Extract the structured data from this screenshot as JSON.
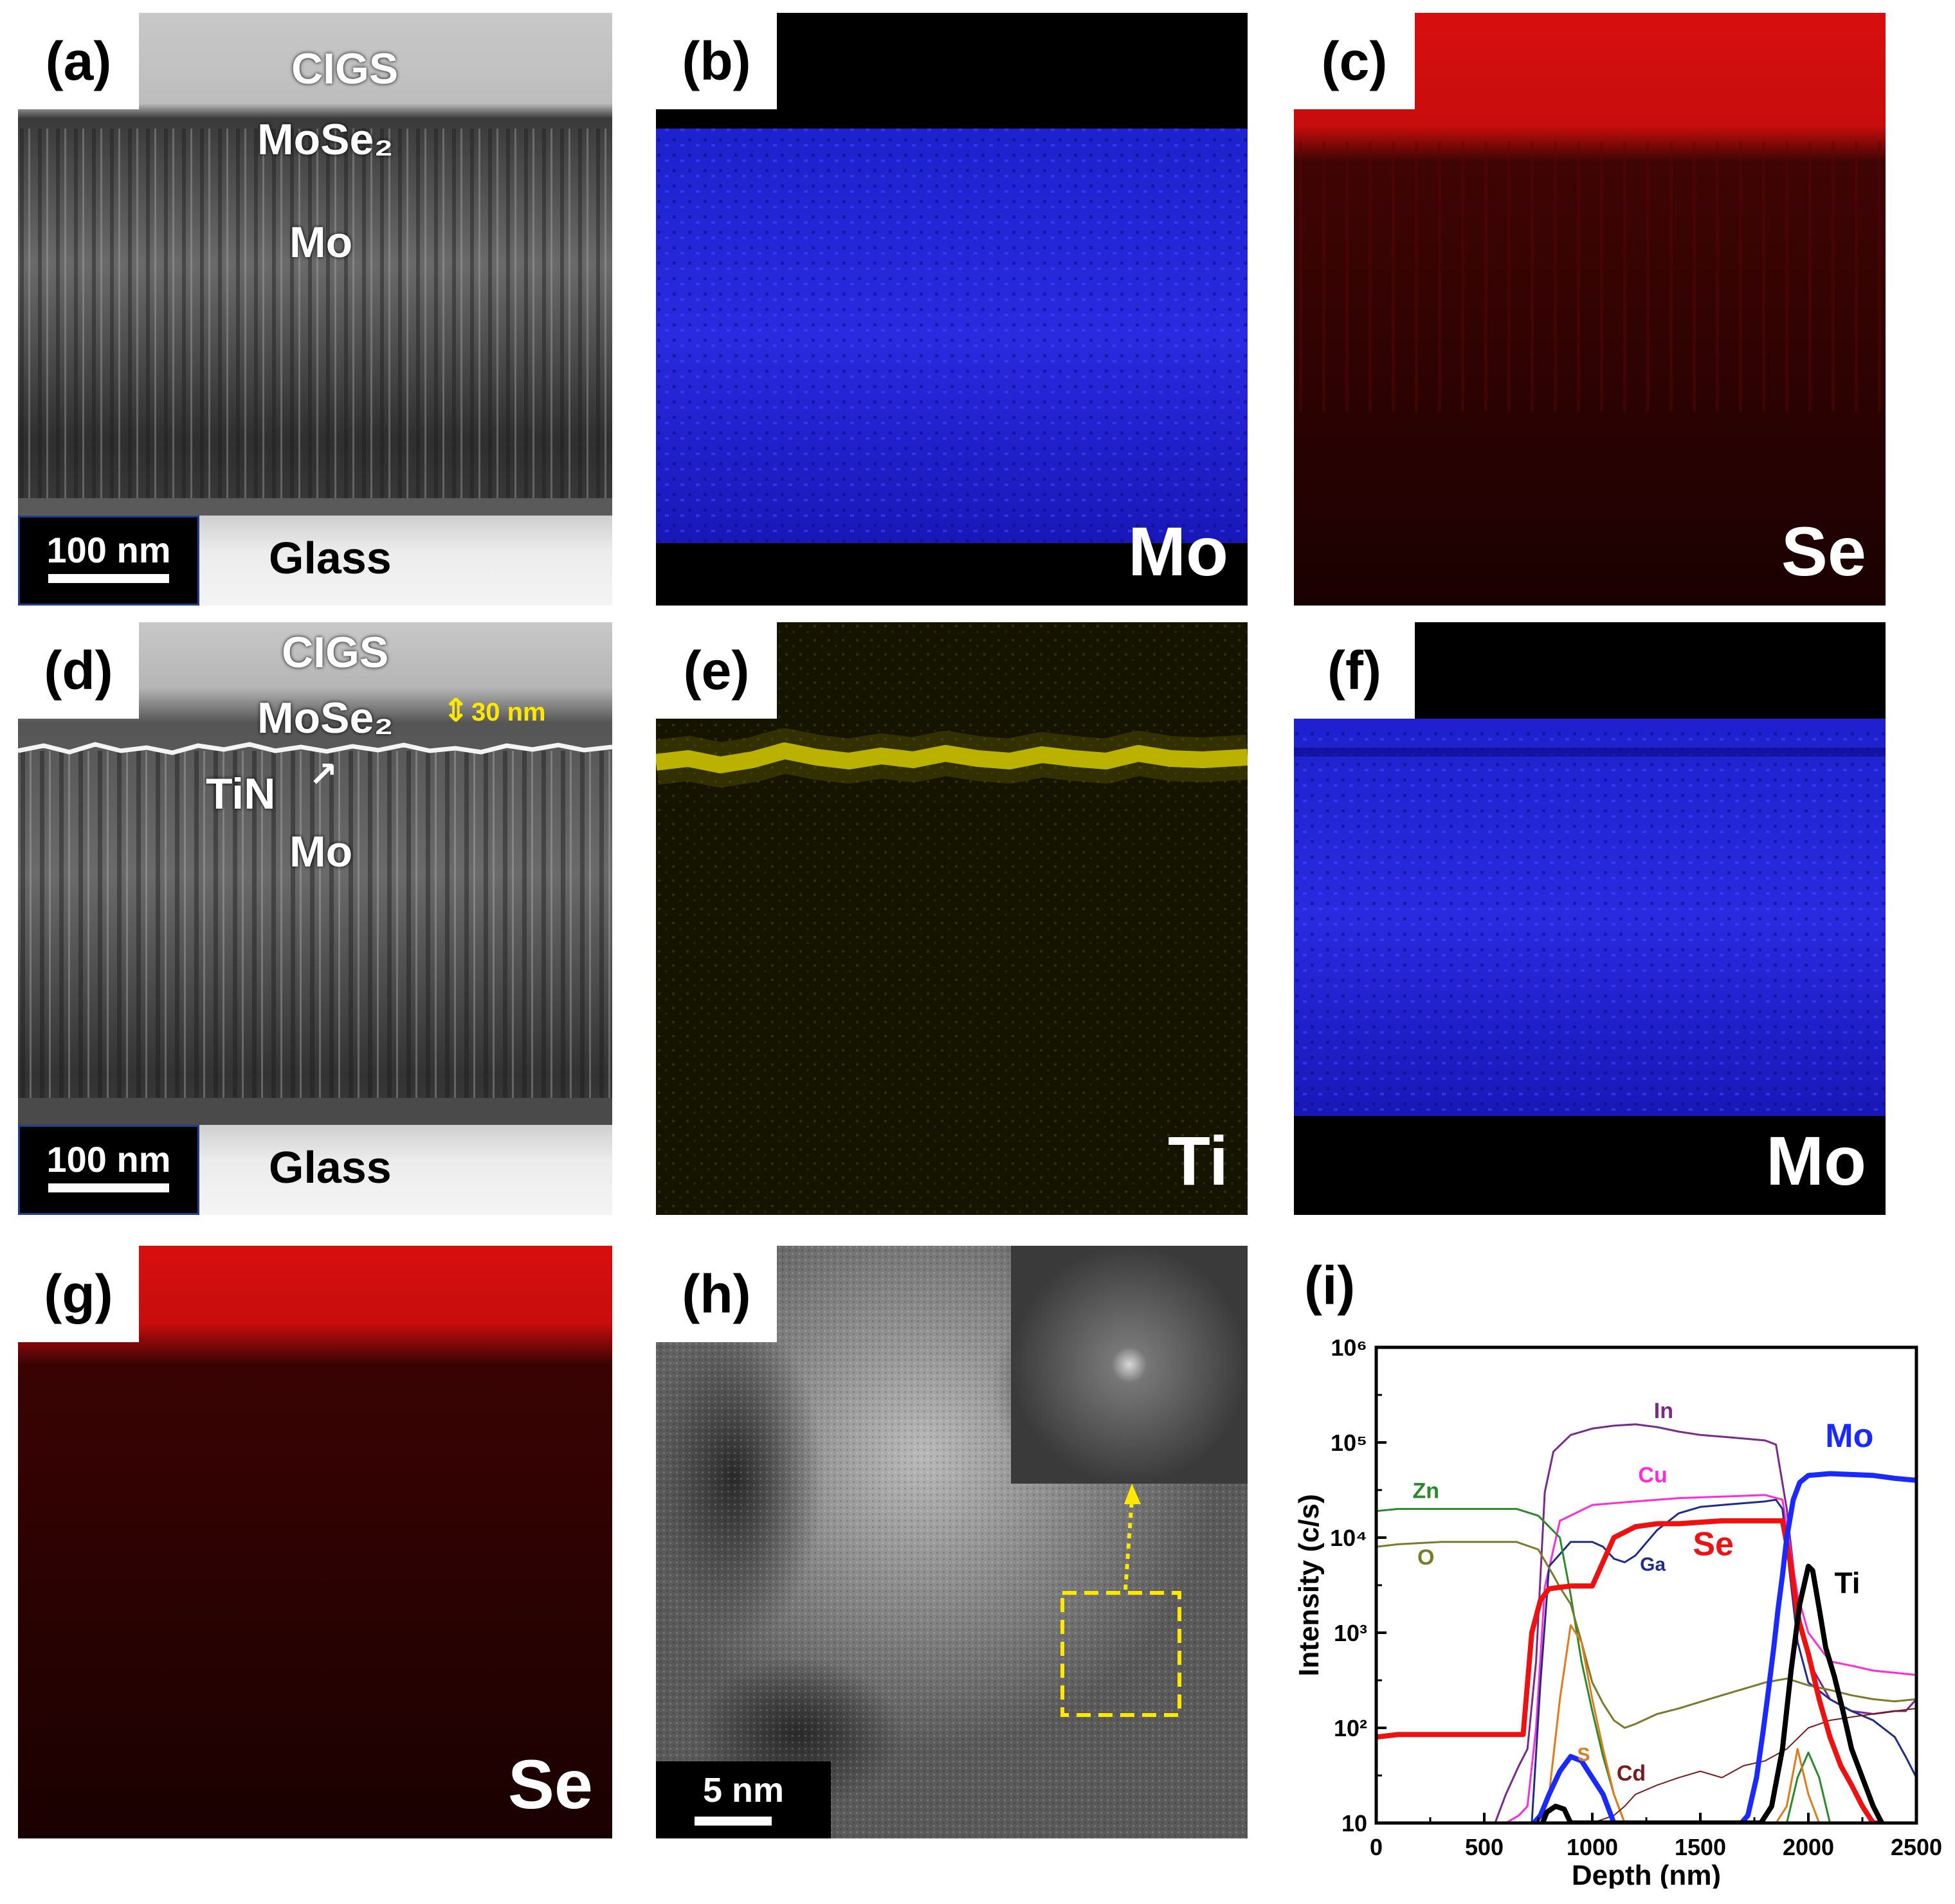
{
  "figure": {
    "panels": {
      "a": {
        "label": "(a)",
        "layers": {
          "top": "CIGS",
          "interlayer": "MoSe₂",
          "metal": "Mo"
        },
        "scale": "100 nm",
        "substrate": "Glass"
      },
      "b": {
        "label": "(b)",
        "element": "Mo",
        "map_color": "#1a1aff"
      },
      "c": {
        "label": "(c)",
        "element": "Se",
        "map_color": "#e01010"
      },
      "d": {
        "label": "(d)",
        "layers": {
          "top": "CIGS",
          "interlayer": "MoSe₂",
          "thickness": "30 nm",
          "barrier": "TiN",
          "metal": "Mo"
        },
        "scale": "100 nm",
        "substrate": "Glass"
      },
      "e": {
        "label": "(e)",
        "element": "Ti",
        "map_color": "#d8d000"
      },
      "f": {
        "label": "(f)",
        "element": "Mo",
        "map_color": "#1a1aff"
      },
      "g": {
        "label": "(g)",
        "element": "Se",
        "map_color": "#e01010"
      },
      "h": {
        "label": "(h)",
        "scale": "5 nm"
      },
      "i": {
        "label": "(i)"
      }
    }
  },
  "chart_data": {
    "type": "line",
    "xlabel": "Depth (nm)",
    "ylabel": "Intensity (c/s)",
    "xlim": [
      0,
      2500
    ],
    "ylim": [
      10,
      1000000
    ],
    "yscale": "log",
    "xticks": [
      "0",
      "500",
      "1000",
      "1500",
      "2000",
      "2500"
    ],
    "yticks": [
      "10",
      "10²",
      "10³",
      "10⁴",
      "10⁵",
      "10⁶"
    ],
    "series": [
      {
        "name": "In",
        "color": "#7a2a8a",
        "width": 3,
        "x": [
          550,
          600,
          660,
          700,
          740,
          780,
          820,
          900,
          1000,
          1100,
          1200,
          1300,
          1400,
          1500,
          1600,
          1700,
          1800,
          1850,
          1900,
          1950,
          2000,
          2100,
          2200,
          2300,
          2400,
          2450,
          2500
        ],
        "y": [
          10,
          20,
          40,
          60,
          500,
          30000,
          80000,
          120000,
          140000,
          150000,
          155000,
          145000,
          130000,
          120000,
          115000,
          110000,
          105000,
          95000,
          20000,
          2000,
          500,
          200,
          150,
          140,
          150,
          150,
          200
        ]
      },
      {
        "name": "Cu",
        "color": "#ff2ad9",
        "width": 3,
        "x": [
          600,
          660,
          700,
          740,
          780,
          850,
          1000,
          1200,
          1400,
          1600,
          1800,
          1880,
          1950,
          2000,
          2100,
          2200,
          2300,
          2400,
          2500
        ],
        "y": [
          10,
          12,
          15,
          100,
          3000,
          15000,
          22000,
          24000,
          26000,
          27000,
          28000,
          25000,
          2500,
          1000,
          500,
          450,
          400,
          380,
          360
        ]
      },
      {
        "name": "Ga",
        "color": "#1f2c8c",
        "width": 3,
        "x": [
          720,
          760,
          800,
          900,
          1000,
          1050,
          1100,
          1150,
          1200,
          1300,
          1400,
          1500,
          1600,
          1700,
          1800,
          1850,
          1880,
          1950,
          2000,
          2100,
          2200,
          2300,
          2400,
          2450,
          2500
        ],
        "y": [
          10,
          300,
          5000,
          9000,
          9000,
          8000,
          6000,
          5500,
          6500,
          12000,
          18000,
          21000,
          22000,
          23000,
          24000,
          25000,
          20000,
          800,
          300,
          200,
          150,
          120,
          80,
          50,
          30
        ]
      },
      {
        "name": "Zn",
        "color": "#2a8a2a",
        "width": 3,
        "x": [
          0,
          100,
          300,
          500,
          650,
          750,
          850,
          900,
          950,
          1000,
          1050,
          1100,
          1150,
          1200,
          1800,
          1900,
          1950,
          2000,
          2050,
          2100,
          2500
        ],
        "y": [
          19000,
          20000,
          20000,
          20000,
          20000,
          17000,
          10000,
          2500,
          500,
          150,
          50,
          20,
          10,
          10,
          10,
          10,
          30,
          55,
          30,
          10,
          10
        ]
      },
      {
        "name": "O",
        "color": "#7a7a2a",
        "width": 3,
        "x": [
          0,
          100,
          300,
          500,
          650,
          750,
          820,
          850,
          900,
          950,
          1000,
          1050,
          1100,
          1150,
          1200,
          1300,
          1400,
          1600,
          1800,
          1900,
          2000,
          2100,
          2200,
          2300,
          2400,
          2500
        ],
        "y": [
          8000,
          8500,
          9000,
          9000,
          9000,
          7500,
          4000,
          3000,
          2000,
          800,
          300,
          180,
          120,
          100,
          110,
          140,
          160,
          220,
          300,
          330,
          280,
          250,
          220,
          200,
          190,
          200
        ]
      },
      {
        "name": "S",
        "color": "#e07a1a",
        "width": 3,
        "x": [
          750,
          800,
          850,
          900,
          950,
          1000,
          1050,
          1100,
          1150,
          1200,
          1850,
          1900,
          1950,
          2000,
          2050,
          2100
        ],
        "y": [
          10,
          20,
          200,
          1200,
          800,
          200,
          60,
          20,
          10,
          10,
          10,
          15,
          60,
          20,
          10,
          10
        ]
      },
      {
        "name": "Cd",
        "color": "#7a1a1a",
        "width": 2,
        "x": [
          1000,
          1100,
          1150,
          1200,
          1300,
          1400,
          1500,
          1600,
          1700,
          1800,
          1900,
          2000,
          2100,
          2200,
          2300,
          2400,
          2500
        ],
        "y": [
          10,
          12,
          15,
          20,
          25,
          30,
          35,
          30,
          40,
          45,
          60,
          100,
          120,
          130,
          140,
          150,
          160
        ]
      },
      {
        "name": "Se",
        "color": "#ee1111",
        "width": 8,
        "x": [
          0,
          100,
          200,
          300,
          400,
          500,
          600,
          680,
          720,
          760,
          800,
          850,
          900,
          1000,
          1100,
          1200,
          1300,
          1400,
          1500,
          1600,
          1700,
          1800,
          1880,
          1920,
          1950,
          2000,
          2050,
          2100,
          2150,
          2200,
          2250,
          2300,
          2350
        ],
        "y": [
          80,
          85,
          85,
          85,
          85,
          85,
          85,
          85,
          1000,
          2200,
          2900,
          3000,
          3100,
          3100,
          10000,
          13000,
          14000,
          14000,
          14500,
          15000,
          15000,
          15000,
          15000,
          5000,
          1500,
          600,
          200,
          80,
          40,
          25,
          15,
          10,
          10
        ]
      },
      {
        "name": "Mo",
        "color": "#1a2aff",
        "width": 8,
        "x": [
          730,
          760,
          800,
          850,
          900,
          950,
          1000,
          1050,
          1100,
          1690,
          1720,
          1760,
          1790,
          1810,
          1840,
          1860,
          1880,
          1900,
          1930,
          1960,
          2000,
          2100,
          2200,
          2300,
          2400,
          2500
        ],
        "y": [
          10,
          12,
          20,
          35,
          50,
          45,
          30,
          20,
          10,
          10,
          12,
          30,
          90,
          200,
          700,
          1800,
          4000,
          10000,
          25000,
          38000,
          45000,
          47000,
          46000,
          45000,
          42000,
          40000
        ]
      },
      {
        "name": "Ti",
        "color": "#000000",
        "width": 8,
        "x": [
          770,
          790,
          830,
          870,
          900,
          1780,
          1830,
          1880,
          1920,
          1960,
          2000,
          2020,
          2050,
          2080,
          2120,
          2160,
          2200,
          2250,
          2300,
          2340
        ],
        "y": [
          10,
          13,
          15,
          14,
          10,
          10,
          15,
          60,
          400,
          2000,
          5000,
          4500,
          1800,
          700,
          350,
          150,
          60,
          30,
          15,
          10
        ]
      }
    ]
  }
}
